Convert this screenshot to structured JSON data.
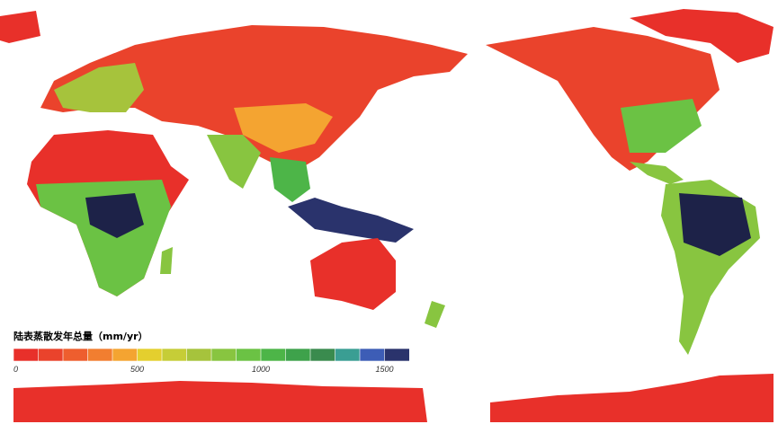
{
  "legend": {
    "title": "陆表蒸散发年总量（mm/yr）",
    "range": [
      0,
      1600
    ],
    "ticks": [
      0,
      500,
      1000,
      1500
    ],
    "colors": [
      "#e8302a",
      "#ea432c",
      "#ee5e2e",
      "#f27e30",
      "#f4a431",
      "#e4cf2e",
      "#c6cd37",
      "#a6c33c",
      "#88c540",
      "#6bc244",
      "#4db548",
      "#3ea24b",
      "#3a8b4e",
      "#3a9e93",
      "#3d5db6",
      "#2a336c"
    ]
  }
}
